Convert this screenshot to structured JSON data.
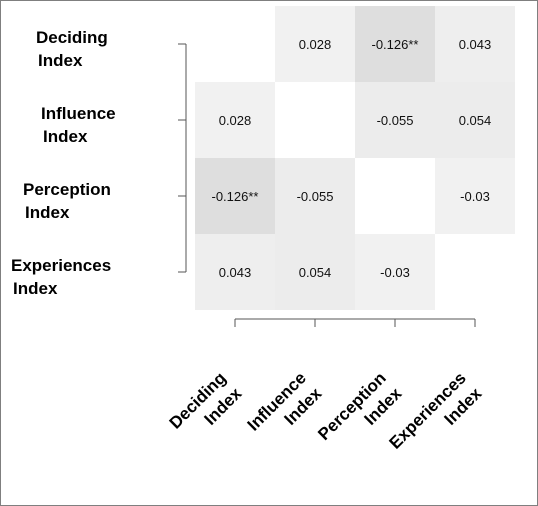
{
  "chart_data": {
    "type": "heatmap",
    "rows": [
      {
        "line1": "Deciding",
        "line2": "Index"
      },
      {
        "line1": "Influence",
        "line2": "Index"
      },
      {
        "line1": "Perception",
        "line2": "Index"
      },
      {
        "line1": "Experiences",
        "line2": "Index"
      }
    ],
    "columns": [
      {
        "line1": "Deciding",
        "line2": "Index"
      },
      {
        "line1": "Influence",
        "line2": "Index"
      },
      {
        "line1": "Perception",
        "line2": "Index"
      },
      {
        "line1": "Experiences",
        "line2": "Index"
      }
    ],
    "values": [
      [
        null,
        0.028,
        -0.126,
        0.043
      ],
      [
        0.028,
        null,
        -0.055,
        0.054
      ],
      [
        -0.126,
        -0.055,
        null,
        -0.03
      ],
      [
        0.043,
        0.054,
        -0.03,
        null
      ]
    ],
    "labels": [
      [
        "",
        "0.028",
        "-0.126**",
        "0.043"
      ],
      [
        "0.028",
        "",
        "-0.055",
        "0.054"
      ],
      [
        "-0.126**",
        "-0.055",
        "",
        "-0.03"
      ],
      [
        "0.043",
        "0.054",
        "-0.03",
        ""
      ]
    ],
    "color_low": "#f7f7f7",
    "color_high": "#dedede",
    "diagonal_color": "#ffffff",
    "grid": false
  }
}
